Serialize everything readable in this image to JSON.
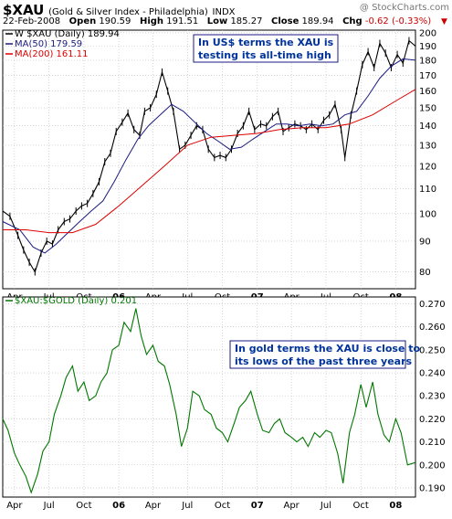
{
  "header": {
    "symbol": "$XAU",
    "name": "(Gold & Silver Index - Philadelphia)",
    "exchange": "INDX",
    "watermark": "@ StockCharts.com",
    "date": "22-Feb-2008",
    "open_label": "Open",
    "open": "190.59",
    "high_label": "High",
    "high": "191.51",
    "low_label": "Low",
    "low": "185.27",
    "close_label": "Close",
    "close": "189.94",
    "chg_label": "Chg",
    "chg": "-0.62 (-0.33%)"
  },
  "colors": {
    "price": "#000000",
    "ma50": "#1a1a80",
    "ma200": "#dd0000",
    "ratio": "#007700",
    "annotation_text": "#003399",
    "annotation_border": "#1a1a80",
    "grid": "#bbbbbb"
  },
  "chart_data": [
    {
      "type": "line",
      "subtype": "candlestick",
      "legend": [
        {
          "label": "W $XAU (Daily) 189.94",
          "color": "#000000"
        },
        {
          "label": "MA(50) 179.59",
          "color": "#1a1a80"
        },
        {
          "label": "MA(200) 161.11",
          "color": "#dd0000"
        }
      ],
      "annotation": [
        "In US$ terms the XAU is",
        "testing its all-time high"
      ],
      "y_axis": {
        "scale": "log",
        "ticks": [
          80,
          90,
          100,
          110,
          120,
          130,
          140,
          150,
          160,
          170,
          180,
          190,
          200
        ],
        "range": [
          75,
          202
        ]
      },
      "x_ticks": [
        {
          "label": "Apr",
          "date": "2005-04",
          "bold": false
        },
        {
          "label": "Jul",
          "date": "2005-07",
          "bold": false
        },
        {
          "label": "Oct",
          "date": "2005-10",
          "bold": false
        },
        {
          "label": "06",
          "date": "2006-01",
          "bold": true
        },
        {
          "label": "Apr",
          "date": "2006-04",
          "bold": false
        },
        {
          "label": "Jul",
          "date": "2006-07",
          "bold": false
        },
        {
          "label": "Oct",
          "date": "2006-10",
          "bold": false
        },
        {
          "label": "07",
          "date": "2007-01",
          "bold": true
        },
        {
          "label": "Apr",
          "date": "2007-04",
          "bold": false
        },
        {
          "label": "Jul",
          "date": "2007-07",
          "bold": false
        },
        {
          "label": "Oct",
          "date": "2007-10",
          "bold": false
        },
        {
          "label": "08",
          "date": "2008-01",
          "bold": true
        }
      ],
      "x_range": [
        "2005-03-01",
        "2008-02-22"
      ],
      "series": [
        {
          "name": "$XAU",
          "x": [
            "2005-03-01",
            "2005-03-20",
            "2005-04-10",
            "2005-04-25",
            "2005-05-10",
            "2005-05-25",
            "2005-06-10",
            "2005-06-25",
            "2005-07-10",
            "2005-07-25",
            "2005-08-10",
            "2005-08-25",
            "2005-09-10",
            "2005-09-25",
            "2005-10-10",
            "2005-10-25",
            "2005-11-10",
            "2005-11-25",
            "2005-12-10",
            "2005-12-25",
            "2006-01-10",
            "2006-01-25",
            "2006-02-10",
            "2006-02-25",
            "2006-03-10",
            "2006-03-25",
            "2006-04-10",
            "2006-04-25",
            "2006-05-10",
            "2006-05-25",
            "2006-06-10",
            "2006-06-25",
            "2006-07-10",
            "2006-07-25",
            "2006-08-10",
            "2006-08-25",
            "2006-09-10",
            "2006-09-25",
            "2006-10-10",
            "2006-10-25",
            "2006-11-10",
            "2006-11-25",
            "2006-12-10",
            "2006-12-25",
            "2007-01-10",
            "2007-01-25",
            "2007-02-10",
            "2007-02-25",
            "2007-03-10",
            "2007-03-25",
            "2007-04-10",
            "2007-04-25",
            "2007-05-10",
            "2007-05-25",
            "2007-06-10",
            "2007-06-25",
            "2007-07-10",
            "2007-07-25",
            "2007-08-10",
            "2007-08-20",
            "2007-09-05",
            "2007-09-20",
            "2007-10-05",
            "2007-10-20",
            "2007-11-05",
            "2007-11-20",
            "2007-12-05",
            "2007-12-20",
            "2008-01-05",
            "2008-01-20",
            "2008-02-05",
            "2008-02-22"
          ],
          "y": [
            101,
            99,
            92,
            87,
            83,
            80,
            86,
            90,
            89,
            94,
            97,
            98,
            101,
            103,
            104,
            108,
            113,
            122,
            126,
            137,
            142,
            147,
            138,
            135,
            148,
            150,
            158,
            172,
            160,
            148,
            128,
            130,
            135,
            140,
            138,
            128,
            124,
            125,
            124,
            128,
            136,
            140,
            148,
            138,
            141,
            140,
            145,
            148,
            137,
            139,
            141,
            140,
            138,
            141,
            138,
            143,
            146,
            152,
            138,
            124,
            146,
            160,
            177,
            186,
            175,
            192,
            185,
            175,
            184,
            178,
            194,
            190
          ]
        },
        {
          "name": "MA(50)",
          "x": [
            "2005-03-01",
            "2005-04-15",
            "2005-05-20",
            "2005-06-20",
            "2005-07-20",
            "2005-08-20",
            "2005-09-20",
            "2005-10-20",
            "2005-11-20",
            "2005-12-20",
            "2006-01-20",
            "2006-02-20",
            "2006-03-20",
            "2006-04-20",
            "2006-05-20",
            "2006-06-20",
            "2006-07-20",
            "2006-08-20",
            "2006-09-20",
            "2006-10-20",
            "2006-11-20",
            "2006-12-20",
            "2007-01-20",
            "2007-02-20",
            "2007-03-20",
            "2007-04-20",
            "2007-05-20",
            "2007-06-20",
            "2007-07-20",
            "2007-08-20",
            "2007-09-20",
            "2007-10-20",
            "2007-11-20",
            "2007-12-20",
            "2008-01-20",
            "2008-02-22"
          ],
          "y": [
            97,
            94,
            88,
            86,
            89,
            93,
            97,
            101,
            105,
            113,
            123,
            133,
            140,
            146,
            152,
            148,
            142,
            136,
            132,
            128,
            129,
            133,
            137,
            141,
            141,
            140,
            141,
            140,
            141,
            146,
            148,
            157,
            168,
            176,
            181,
            180
          ]
        },
        {
          "name": "MA(200)",
          "x": [
            "2005-03-01",
            "2005-05-01",
            "2005-07-01",
            "2005-09-01",
            "2005-11-01",
            "2006-01-01",
            "2006-03-01",
            "2006-05-01",
            "2006-07-01",
            "2006-09-01",
            "2006-11-01",
            "2007-01-01",
            "2007-03-01",
            "2007-05-01",
            "2007-07-01",
            "2007-09-01",
            "2007-11-01",
            "2008-01-01",
            "2008-02-22"
          ],
          "y": [
            94,
            94,
            93,
            93,
            96,
            103,
            111,
            120,
            130,
            134,
            135,
            136,
            138,
            139,
            139,
            141,
            146,
            154,
            161
          ]
        }
      ]
    },
    {
      "type": "line",
      "legend": [
        {
          "label": "$XAU:$GOLD (Daily) 0.201",
          "color": "#007700"
        }
      ],
      "annotation": [
        "In gold terms the XAU is close to",
        "its lows of the past three years"
      ],
      "y_axis": {
        "scale": "linear",
        "ticks": [
          0.19,
          0.2,
          0.21,
          0.22,
          0.23,
          0.24,
          0.25,
          0.26,
          0.27
        ],
        "tick_labels": [
          "0.190",
          "0.200",
          "0.210",
          "0.220",
          "0.230",
          "0.240",
          "0.250",
          "0.260",
          "0.270"
        ],
        "range": [
          0.186,
          0.273
        ]
      },
      "x_ticks": [
        {
          "label": "Apr",
          "date": "2005-04",
          "bold": false
        },
        {
          "label": "Jul",
          "date": "2005-07",
          "bold": false
        },
        {
          "label": "Oct",
          "date": "2005-10",
          "bold": false
        },
        {
          "label": "06",
          "date": "2006-01",
          "bold": true
        },
        {
          "label": "Apr",
          "date": "2006-04",
          "bold": false
        },
        {
          "label": "Jul",
          "date": "2006-07",
          "bold": false
        },
        {
          "label": "Oct",
          "date": "2006-10",
          "bold": false
        },
        {
          "label": "07",
          "date": "2007-01",
          "bold": true
        },
        {
          "label": "Apr",
          "date": "2007-04",
          "bold": false
        },
        {
          "label": "Jul",
          "date": "2007-07",
          "bold": false
        },
        {
          "label": "Oct",
          "date": "2007-10",
          "bold": false
        },
        {
          "label": "08",
          "date": "2008-01",
          "bold": true
        }
      ],
      "x_range": [
        "2005-03-01",
        "2008-02-22"
      ],
      "series": [
        {
          "name": "$XAU:$GOLD",
          "x": [
            "2005-03-01",
            "2005-03-15",
            "2005-04-01",
            "2005-04-15",
            "2005-05-01",
            "2005-05-15",
            "2005-06-01",
            "2005-06-15",
            "2005-07-01",
            "2005-07-15",
            "2005-08-01",
            "2005-08-15",
            "2005-09-01",
            "2005-09-15",
            "2005-10-01",
            "2005-10-15",
            "2005-11-01",
            "2005-11-15",
            "2005-12-01",
            "2005-12-15",
            "2006-01-01",
            "2006-01-15",
            "2006-02-01",
            "2006-02-15",
            "2006-03-01",
            "2006-03-15",
            "2006-04-01",
            "2006-04-15",
            "2006-05-01",
            "2006-05-15",
            "2006-06-01",
            "2006-06-15",
            "2006-07-01",
            "2006-07-15",
            "2006-08-01",
            "2006-08-15",
            "2006-09-01",
            "2006-09-15",
            "2006-10-01",
            "2006-10-15",
            "2006-11-01",
            "2006-11-15",
            "2006-12-01",
            "2006-12-15",
            "2007-01-01",
            "2007-01-15",
            "2007-02-01",
            "2007-02-15",
            "2007-03-01",
            "2007-03-15",
            "2007-04-01",
            "2007-04-15",
            "2007-05-01",
            "2007-05-15",
            "2007-06-01",
            "2007-06-15",
            "2007-07-01",
            "2007-07-15",
            "2007-08-01",
            "2007-08-15",
            "2007-09-01",
            "2007-09-15",
            "2007-10-01",
            "2007-10-15",
            "2007-11-01",
            "2007-11-15",
            "2007-12-01",
            "2007-12-15",
            "2008-01-01",
            "2008-01-15",
            "2008-02-01",
            "2008-02-22"
          ],
          "y": [
            0.22,
            0.215,
            0.205,
            0.2,
            0.195,
            0.188,
            0.196,
            0.206,
            0.21,
            0.222,
            0.23,
            0.238,
            0.243,
            0.232,
            0.236,
            0.228,
            0.23,
            0.236,
            0.24,
            0.25,
            0.252,
            0.262,
            0.258,
            0.268,
            0.256,
            0.248,
            0.252,
            0.245,
            0.243,
            0.235,
            0.222,
            0.208,
            0.216,
            0.232,
            0.23,
            0.224,
            0.222,
            0.216,
            0.214,
            0.21,
            0.218,
            0.225,
            0.228,
            0.232,
            0.222,
            0.215,
            0.214,
            0.218,
            0.22,
            0.214,
            0.212,
            0.21,
            0.212,
            0.208,
            0.214,
            0.212,
            0.215,
            0.214,
            0.205,
            0.192,
            0.214,
            0.222,
            0.235,
            0.225,
            0.236,
            0.222,
            0.213,
            0.21,
            0.22,
            0.214,
            0.2,
            0.201
          ]
        }
      ]
    }
  ]
}
